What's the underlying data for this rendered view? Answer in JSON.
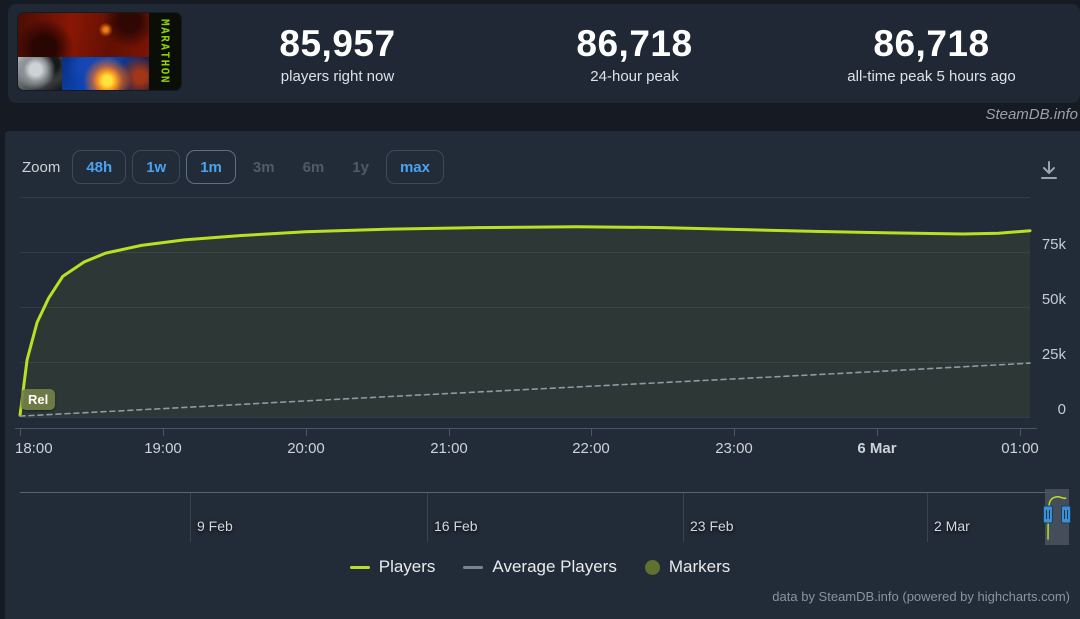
{
  "header": {
    "capsule": {
      "game": "Marathon",
      "logo_text": "MARATHON"
    },
    "stats": [
      {
        "value": "85,957",
        "label": "players right now"
      },
      {
        "value": "86,718",
        "label": "24-hour peak"
      },
      {
        "value": "86,718",
        "label": "all-time peak 5 hours ago"
      }
    ]
  },
  "banner": {
    "site": "SteamDB.info"
  },
  "toolbar": {
    "zoom_label": "Zoom",
    "buttons": [
      {
        "label": "48h",
        "state": "enabled"
      },
      {
        "label": "1w",
        "state": "enabled"
      },
      {
        "label": "1m",
        "state": "selected"
      },
      {
        "label": "3m",
        "state": "disabled"
      },
      {
        "label": "6m",
        "state": "disabled"
      },
      {
        "label": "1y",
        "state": "disabled"
      },
      {
        "label": "max",
        "state": "enabled"
      }
    ]
  },
  "chart_data": {
    "type": "line",
    "title": "",
    "x_unit": "hours (5 Mar 18:00 → 6 Mar 01:00)",
    "x_range": [
      18,
      25.07
    ],
    "y_range": [
      0,
      100000
    ],
    "grid": true,
    "legend_position": "bottom",
    "x_ticks": [
      {
        "x": 18,
        "label": "18:00"
      },
      {
        "x": 19,
        "label": "19:00"
      },
      {
        "x": 20,
        "label": "20:00"
      },
      {
        "x": 21,
        "label": "21:00"
      },
      {
        "x": 22,
        "label": "22:00"
      },
      {
        "x": 23,
        "label": "23:00"
      },
      {
        "x": 24,
        "label": "6 Mar",
        "bold": true
      },
      {
        "x": 25,
        "label": "01:00"
      }
    ],
    "y_ticks": [
      {
        "value": 0,
        "label": "0"
      },
      {
        "value": 25000,
        "label": "25k"
      },
      {
        "value": 50000,
        "label": "50k"
      },
      {
        "value": 75000,
        "label": "75k"
      },
      {
        "value": 100000,
        "label": ""
      }
    ],
    "series": [
      {
        "name": "Players",
        "color": "#b9e022",
        "style": "solid",
        "area": true,
        "points": [
          [
            18.0,
            800
          ],
          [
            18.05,
            26000
          ],
          [
            18.12,
            43000
          ],
          [
            18.2,
            54000
          ],
          [
            18.3,
            64000
          ],
          [
            18.45,
            70500
          ],
          [
            18.6,
            74500
          ],
          [
            18.85,
            78000
          ],
          [
            19.15,
            80500
          ],
          [
            19.55,
            82500
          ],
          [
            20.0,
            84200
          ],
          [
            20.6,
            85400
          ],
          [
            21.2,
            86100
          ],
          [
            21.9,
            86500
          ],
          [
            22.5,
            86100
          ],
          [
            23.1,
            85100
          ],
          [
            23.6,
            84300
          ],
          [
            24.1,
            83700
          ],
          [
            24.6,
            83200
          ],
          [
            24.85,
            83500
          ],
          [
            25.07,
            84700
          ]
        ]
      },
      {
        "name": "Average Players",
        "color": "#8e99a4",
        "style": "dashed",
        "area": false,
        "points": [
          [
            18.0,
            400
          ],
          [
            19.0,
            3800
          ],
          [
            20.0,
            7300
          ],
          [
            21.0,
            10700
          ],
          [
            22.0,
            14000
          ],
          [
            23.0,
            17300
          ],
          [
            24.0,
            20700
          ],
          [
            25.07,
            24500
          ]
        ]
      }
    ],
    "markers": [
      {
        "label": "Rel",
        "x": 18.0
      }
    ],
    "legend": [
      {
        "label": "Players",
        "swatch": "line",
        "color": "#b9e022"
      },
      {
        "label": "Average Players",
        "swatch": "line",
        "color": "#7a848e"
      },
      {
        "label": "Markers",
        "swatch": "circle",
        "color": "#5f7030"
      }
    ],
    "navigator": {
      "ticks": [
        {
          "label": "9 Feb",
          "pos": 0.164
        },
        {
          "label": "16 Feb",
          "pos": 0.392
        },
        {
          "label": "23 Feb",
          "pos": 0.639
        },
        {
          "label": "2 Mar",
          "pos": 0.875
        }
      ]
    }
  },
  "footer": {
    "credit": "data by SteamDB.info (powered by highcharts.com)"
  }
}
